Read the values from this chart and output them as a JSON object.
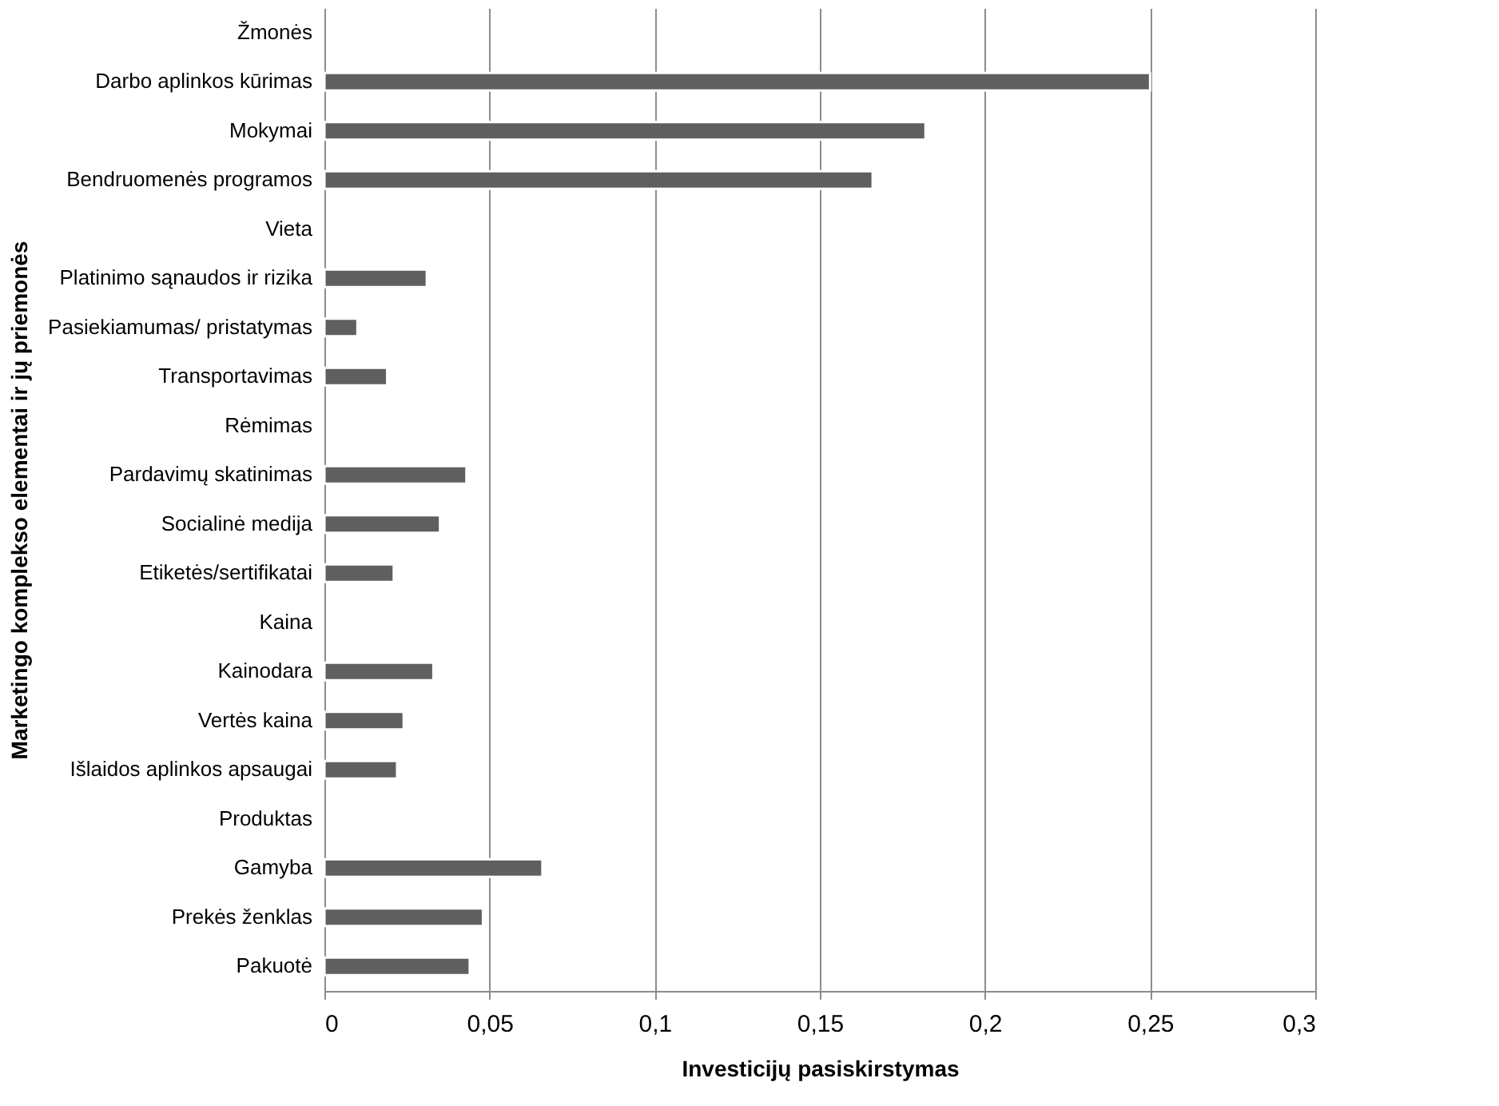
{
  "chart_data": {
    "type": "bar",
    "orientation": "horizontal",
    "xlabel": "Investicijų pasiskirstymas",
    "ylabel": "Marketingo komplekso elementai ir jų priemonės",
    "categories": [
      "Žmonės",
      "Darbo aplinkos kūrimas",
      "Mokymai",
      "Bendruomenės programos",
      "Vieta",
      "Platinimo sąnaudos ir rizika",
      "Pasiekiamumas/ pristatymas",
      "Transportavimas",
      "Rėmimas",
      "Pardavimų skatinimas",
      "Socialinė medija",
      "Etiketės/sertifikatai",
      "Kaina",
      "Kainodara",
      "Vertės kaina",
      "Išlaidos aplinkos apsaugai",
      "Produktas",
      "Gamyba",
      "Prekės ženklas",
      "Pakuotė"
    ],
    "values": [
      null,
      0.25,
      0.182,
      0.166,
      null,
      0.031,
      0.01,
      0.019,
      null,
      0.043,
      0.035,
      0.021,
      null,
      0.033,
      0.024,
      0.022,
      null,
      0.066,
      0.048,
      0.044
    ],
    "color": "#5f5f5f",
    "xlim": [
      0,
      0.3
    ],
    "xticks": [
      {
        "value": 0,
        "label": "0"
      },
      {
        "value": 0.05,
        "label": "0,05"
      },
      {
        "value": 0.1,
        "label": "0,1"
      },
      {
        "value": 0.15,
        "label": "0,15"
      },
      {
        "value": 0.2,
        "label": "0,2"
      },
      {
        "value": 0.25,
        "label": "0,25"
      },
      {
        "value": 0.3,
        "label": "0,3"
      }
    ],
    "grid": "x"
  }
}
